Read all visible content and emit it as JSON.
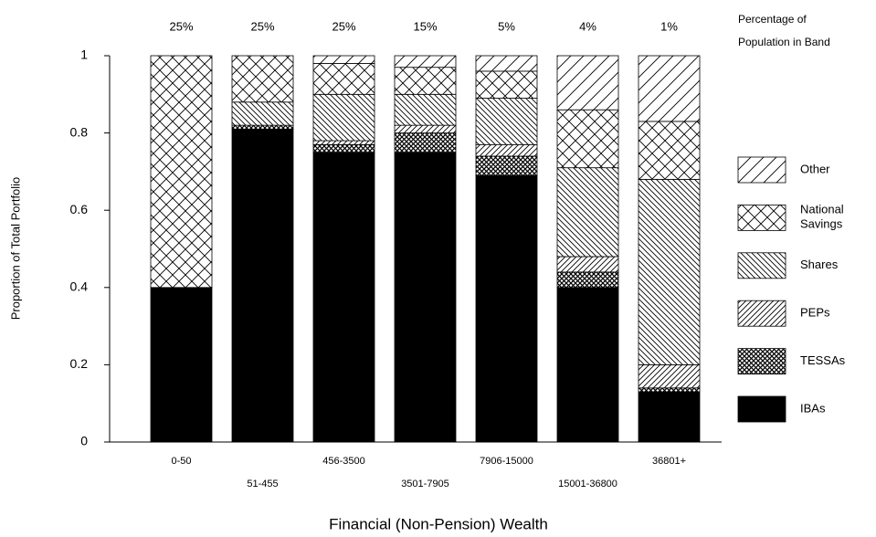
{
  "chart_data": {
    "type": "stacked_bar",
    "x_label": "Financial (Non-Pension) Wealth",
    "y_label": "Proportion of Total Portfolio",
    "band_title": [
      "Percentage of",
      "Population in Band"
    ],
    "categories": [
      "0-50",
      "51-455",
      "456-3500",
      "3501-7905",
      "7906-15000",
      "15001-36800",
      "36801+"
    ],
    "band_percentages": {
      "values": [
        25,
        25,
        25,
        15,
        5,
        4,
        1
      ],
      "value_labels": [
        "25%",
        "25%",
        "25%",
        "15%",
        "5%",
        "4%",
        "1%"
      ]
    },
    "series": [
      {
        "name": "IBAs",
        "color": "#000000",
        "values": [
          0.4,
          0.81,
          0.75,
          0.75,
          0.69,
          0.4,
          0.13
        ]
      },
      {
        "name": "TESSAs",
        "color": "#000000",
        "values": [
          0,
          0.01,
          0.02,
          0.05,
          0.05,
          0.04,
          0.01
        ]
      },
      {
        "name": "PEPs",
        "color": "#000000",
        "values": [
          0,
          0,
          0.01,
          0.02,
          0.03,
          0.04,
          0.06
        ]
      },
      {
        "name": "Shares",
        "color": "#000000",
        "values": [
          0,
          0.06,
          0.12,
          0.08,
          0.12,
          0.23,
          0.48
        ]
      },
      {
        "name": "National Savings",
        "color": "#000000",
        "values": [
          0.6,
          0.12,
          0.08,
          0.07,
          0.07,
          0.15,
          0.15
        ]
      },
      {
        "name": "Other",
        "color": "#000000",
        "values": [
          0,
          0,
          0.02,
          0.03,
          0.04,
          0.14,
          0.17
        ]
      }
    ],
    "ylim": [
      0,
      1
    ],
    "yticks": [
      0,
      0.2,
      0.4,
      0.6,
      0.8,
      1
    ],
    "legend": "right"
  }
}
